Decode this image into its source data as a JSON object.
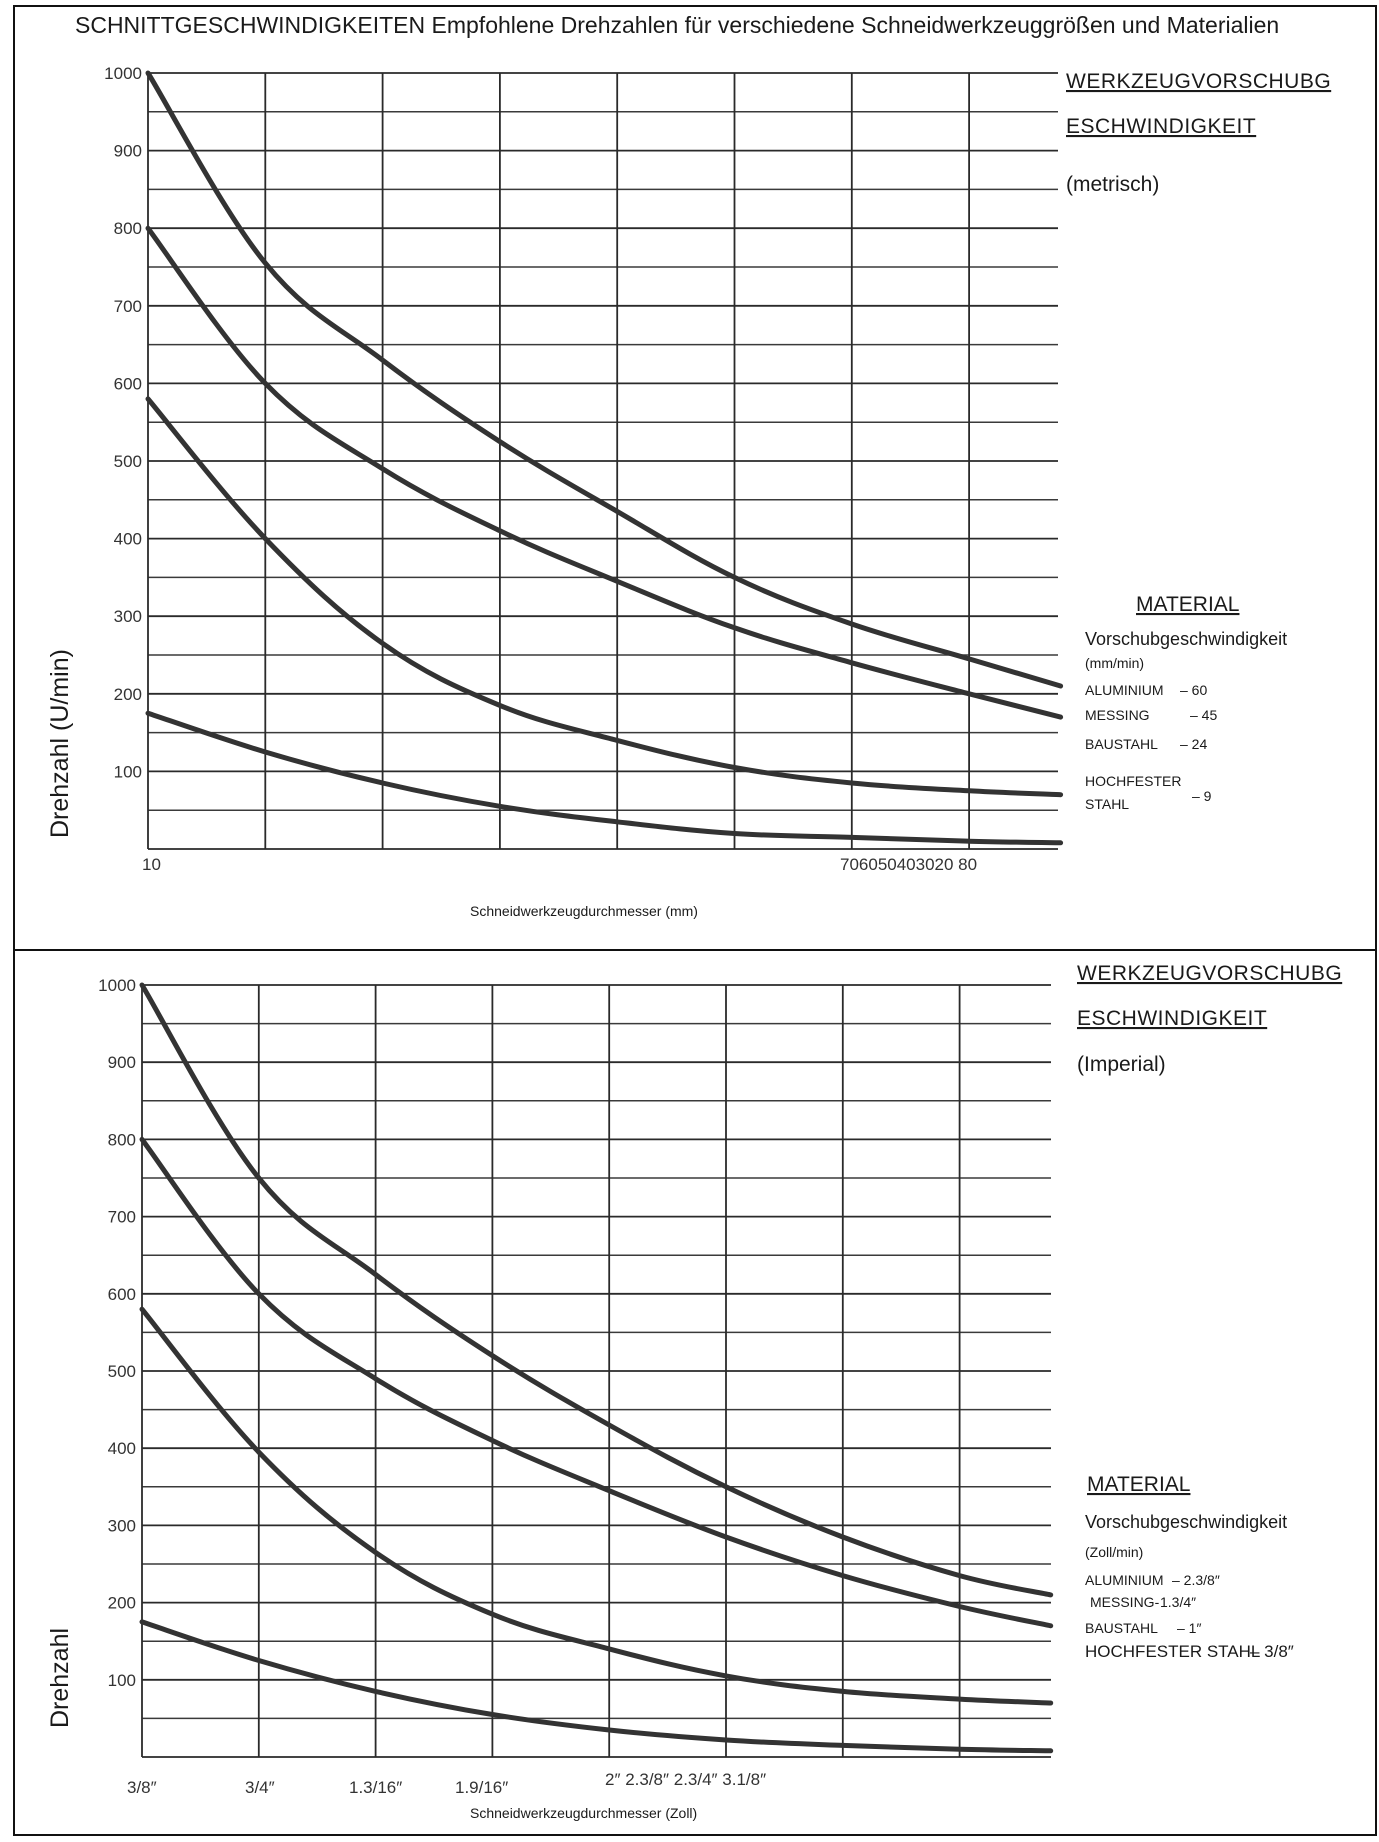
{
  "page_title": "SCHNITTGESCHWINDIGKEITEN Empfohlene Drehzahlen für verschiedene Schneidwerkzeuggrößen und Materialien",
  "chart_data": [
    {
      "type": "line",
      "title": "",
      "ylabel": "Drehzahl (U/min)",
      "xlabel": "Schneidwerkzeugdurchmesser (mm)",
      "ylim": [
        0,
        1000
      ],
      "yticks": [
        "1000",
        "900",
        "800",
        "700",
        "600",
        "500",
        "400",
        "300",
        "200",
        "100"
      ],
      "xtick_labels": [
        "10",
        "706050403020 80"
      ],
      "x_positions": [
        0,
        1,
        2,
        3,
        4,
        5,
        6,
        7,
        7.78
      ],
      "grid": true,
      "side_heading": [
        "WERKZEUGVORSCHUBG",
        "ESCHWINDIGKEIT"
      ],
      "side_sub": "(metrisch)",
      "material_title": "MATERIAL",
      "material_label": "Vorschubgeschwindigkeit",
      "material_unit": "(mm/min)",
      "materials": [
        {
          "name": "ALUMINIUM",
          "value": "– 60"
        },
        {
          "name": "MESSING",
          "value": "– 45"
        },
        {
          "name": "BAUSTAHL",
          "value": "– 24"
        },
        {
          "name": "HOCHFESTER",
          "name2": "STAHL",
          "value": "– 9"
        }
      ],
      "series": [
        {
          "values": [
            1000,
            755,
            630,
            525,
            435,
            350,
            290,
            245,
            210
          ]
        },
        {
          "values": [
            800,
            600,
            490,
            410,
            345,
            285,
            240,
            200,
            170
          ]
        },
        {
          "values": [
            580,
            400,
            265,
            185,
            140,
            105,
            85,
            75,
            70
          ]
        },
        {
          "values": [
            175,
            125,
            85,
            55,
            35,
            20,
            15,
            10,
            8
          ]
        }
      ]
    },
    {
      "type": "line",
      "title": "",
      "ylabel": "Drehzahl",
      "xlabel": "Schneidwerkzeugdurchmesser (Zoll)",
      "ylim": [
        0,
        1000
      ],
      "yticks": [
        "1000",
        "900",
        "800",
        "700",
        "600",
        "500",
        "400",
        "300",
        "200",
        "100"
      ],
      "xtick_labels": [
        "3/8″",
        "3/4″",
        "1.3/16″",
        "1.9/16″",
        "2″ 2.3/8″ 2.3/4″ 3.1/8″"
      ],
      "x_positions": [
        0,
        1,
        2,
        3,
        4,
        5,
        6,
        7,
        7.78
      ],
      "grid": true,
      "side_heading": [
        "WERKZEUGVORSCHUBG",
        "ESCHWINDIGKEIT"
      ],
      "side_sub": "(Imperial)",
      "material_title": "MATERIAL",
      "material_label": "Vorschubgeschwindigkeit",
      "material_unit": "(Zoll/min)",
      "materials": [
        {
          "name": "ALUMINIUM",
          "value": "– 2.3/8″"
        },
        {
          "name": "MESSING-",
          "value": "1.3/4″"
        },
        {
          "name": "BAUSTAHL",
          "value": "– 1″"
        },
        {
          "name": "HOCHFESTER STAHL",
          "value": "– 3/8″"
        }
      ],
      "series": [
        {
          "values": [
            1000,
            750,
            625,
            520,
            430,
            350,
            285,
            235,
            210
          ]
        },
        {
          "values": [
            800,
            600,
            490,
            410,
            345,
            285,
            235,
            195,
            170
          ]
        },
        {
          "values": [
            580,
            395,
            265,
            185,
            140,
            105,
            85,
            75,
            70
          ]
        },
        {
          "values": [
            175,
            125,
            85,
            55,
            35,
            22,
            15,
            10,
            8
          ]
        }
      ]
    }
  ]
}
